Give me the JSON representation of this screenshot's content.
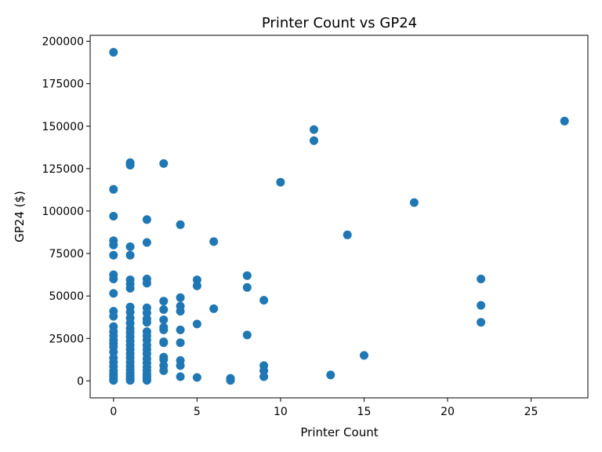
{
  "chart_data": {
    "type": "scatter",
    "title": "Printer Count vs GP24",
    "xlabel": "Printer Count",
    "ylabel": "GP24 ($)",
    "xlim": [
      -1.4,
      28.4
    ],
    "ylim": [
      -10000,
      203500
    ],
    "xticks": [
      0,
      5,
      10,
      15,
      20,
      25
    ],
    "yticks": [
      0,
      25000,
      50000,
      75000,
      100000,
      125000,
      150000,
      175000,
      200000
    ],
    "grid": false,
    "marker_color": "#1f77b4",
    "points": [
      [
        0,
        193500
      ],
      [
        0,
        112800
      ],
      [
        0,
        97000
      ],
      [
        0,
        82500
      ],
      [
        0,
        80000
      ],
      [
        0,
        74000
      ],
      [
        0,
        62500
      ],
      [
        0,
        60000
      ],
      [
        0,
        51500
      ],
      [
        0,
        41000
      ],
      [
        0,
        38000
      ],
      [
        0,
        32000
      ],
      [
        0,
        29000
      ],
      [
        0,
        26500
      ],
      [
        0,
        24000
      ],
      [
        0,
        22000
      ],
      [
        0,
        20000
      ],
      [
        0,
        17000
      ],
      [
        0,
        13500
      ],
      [
        0,
        11000
      ],
      [
        0,
        8500
      ],
      [
        0,
        6000
      ],
      [
        0,
        4000
      ],
      [
        0,
        2500
      ],
      [
        0,
        1200
      ],
      [
        0,
        300
      ],
      [
        1,
        128500
      ],
      [
        1,
        127000
      ],
      [
        1,
        79000
      ],
      [
        1,
        74000
      ],
      [
        1,
        59500
      ],
      [
        1,
        57000
      ],
      [
        1,
        54500
      ],
      [
        1,
        43500
      ],
      [
        1,
        40500
      ],
      [
        1,
        37000
      ],
      [
        1,
        34000
      ],
      [
        1,
        31000
      ],
      [
        1,
        28500
      ],
      [
        1,
        26000
      ],
      [
        1,
        23500
      ],
      [
        1,
        21000
      ],
      [
        1,
        18500
      ],
      [
        1,
        16000
      ],
      [
        1,
        13500
      ],
      [
        1,
        11000
      ],
      [
        1,
        8500
      ],
      [
        1,
        6500
      ],
      [
        1,
        4500
      ],
      [
        1,
        3000
      ],
      [
        1,
        1800
      ],
      [
        1,
        900
      ],
      [
        1,
        300
      ],
      [
        2,
        95000
      ],
      [
        2,
        81500
      ],
      [
        2,
        60000
      ],
      [
        2,
        57500
      ],
      [
        2,
        43000
      ],
      [
        2,
        40000
      ],
      [
        2,
        36500
      ],
      [
        2,
        34500
      ],
      [
        2,
        29000
      ],
      [
        2,
        26500
      ],
      [
        2,
        24000
      ],
      [
        2,
        21000
      ],
      [
        2,
        18500
      ],
      [
        2,
        16000
      ],
      [
        2,
        13000
      ],
      [
        2,
        10500
      ],
      [
        2,
        8000
      ],
      [
        2,
        6000
      ],
      [
        2,
        4000
      ],
      [
        2,
        2500
      ],
      [
        2,
        1200
      ],
      [
        2,
        300
      ],
      [
        3,
        128000
      ],
      [
        3,
        47000
      ],
      [
        3,
        42000
      ],
      [
        3,
        36000
      ],
      [
        3,
        31500
      ],
      [
        3,
        30000
      ],
      [
        3,
        23000
      ],
      [
        3,
        22500
      ],
      [
        3,
        14000
      ],
      [
        3,
        12500
      ],
      [
        3,
        9000
      ],
      [
        3,
        6000
      ],
      [
        4,
        92000
      ],
      [
        4,
        49000
      ],
      [
        4,
        44000
      ],
      [
        4,
        41000
      ],
      [
        4,
        30000
      ],
      [
        4,
        22500
      ],
      [
        4,
        12000
      ],
      [
        4,
        9000
      ],
      [
        4,
        2500
      ],
      [
        5,
        59500
      ],
      [
        5,
        56000
      ],
      [
        5,
        33500
      ],
      [
        5,
        2000
      ],
      [
        6,
        82000
      ],
      [
        6,
        42500
      ],
      [
        7,
        1500
      ],
      [
        7,
        800
      ],
      [
        7,
        300
      ],
      [
        8,
        62000
      ],
      [
        8,
        55000
      ],
      [
        8,
        27000
      ],
      [
        9,
        47500
      ],
      [
        9,
        9000
      ],
      [
        9,
        6000
      ],
      [
        9,
        2500
      ],
      [
        10,
        117000
      ],
      [
        12,
        148000
      ],
      [
        12,
        141500
      ],
      [
        13,
        3500
      ],
      [
        14,
        86000
      ],
      [
        15,
        15000
      ],
      [
        18,
        105000
      ],
      [
        22,
        60000
      ],
      [
        22,
        44500
      ],
      [
        22,
        34500
      ],
      [
        27,
        153000
      ]
    ]
  }
}
